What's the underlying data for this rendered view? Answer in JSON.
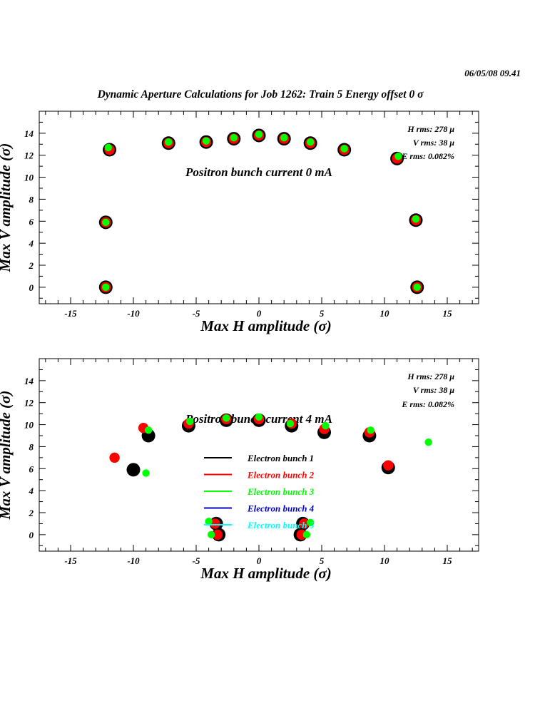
{
  "header": {
    "datetime": "06/05/08   09.41",
    "title": "Dynamic Aperture Calculations for Job 1262:  Train 5   Energy offset  0 σ"
  },
  "colors": {
    "bunch1": "#000000",
    "bunch2": "#ff0000",
    "bunch3": "#00ff00",
    "bunch4": "#0000c0",
    "bunch5": "#00ffff"
  },
  "chart_data": [
    {
      "type": "scatter",
      "xlabel": "Max H amplitude (σ)",
      "ylabel": "Max V amplitude (σ)",
      "xlim": [
        -17.5,
        17.5
      ],
      "ylim": [
        -1.5,
        16
      ],
      "x_ticks": [
        -15,
        -10,
        -5,
        0,
        5,
        10,
        15
      ],
      "y_ticks": [
        0,
        2,
        4,
        6,
        8,
        10,
        12,
        14
      ],
      "annotation": "Positron bunch current  0 mA",
      "stats": [
        "H rms: 278 μ",
        "V rms: 38 μ",
        "E rms: 0.082%"
      ],
      "series": [
        {
          "color": "#000000",
          "points": [
            [
              -12.2,
              0
            ],
            [
              -12.2,
              5.9
            ],
            [
              -11.9,
              12.5
            ],
            [
              -7.2,
              13.1
            ],
            [
              -4.2,
              13.2
            ],
            [
              -2,
              13.5
            ],
            [
              0,
              13.8
            ],
            [
              2,
              13.5
            ],
            [
              4.1,
              13.1
            ],
            [
              6.8,
              12.5
            ],
            [
              11,
              11.7
            ],
            [
              12.5,
              6.1
            ],
            [
              12.6,
              0
            ]
          ]
        },
        {
          "color": "#ff0000",
          "points": [
            [
              -12.2,
              0
            ],
            [
              -12.2,
              5.9
            ],
            [
              -11.9,
              12.5
            ],
            [
              -7.2,
              13.1
            ],
            [
              -4.2,
              13.2
            ],
            [
              -2,
              13.5
            ],
            [
              0,
              13.8
            ],
            [
              2,
              13.5
            ],
            [
              4.1,
              13.1
            ],
            [
              6.8,
              12.5
            ],
            [
              11,
              11.7
            ],
            [
              12.5,
              6.1
            ],
            [
              12.6,
              0
            ]
          ]
        },
        {
          "color": "#00ff00",
          "points": [
            [
              -12.2,
              0
            ],
            [
              -12.2,
              5.9
            ],
            [
              -12,
              12.7
            ],
            [
              -7.2,
              13.2
            ],
            [
              -4.2,
              13.3
            ],
            [
              -2,
              13.6
            ],
            [
              0,
              13.9
            ],
            [
              2,
              13.6
            ],
            [
              4.1,
              13.2
            ],
            [
              6.8,
              12.6
            ],
            [
              11.1,
              11.9
            ],
            [
              12.5,
              6.2
            ],
            [
              12.6,
              0
            ]
          ]
        }
      ]
    },
    {
      "type": "scatter",
      "xlabel": "Max H amplitude (σ)",
      "ylabel": "Max V amplitude (σ)",
      "xlim": [
        -17.5,
        17.5
      ],
      "ylim": [
        -1.5,
        16
      ],
      "x_ticks": [
        -15,
        -10,
        -5,
        0,
        5,
        10,
        15
      ],
      "y_ticks": [
        0,
        2,
        4,
        6,
        8,
        10,
        12,
        14
      ],
      "annotation": "Positron bunch current  4 mA",
      "stats": [
        "H rms: 278 μ",
        "V rms: 38 μ",
        "E rms: 0.082%"
      ],
      "legend": [
        "Electron bunch 1",
        "Electron bunch 2",
        "Electron bunch 3",
        "Electron bunch 4",
        "Electron bunch 5"
      ],
      "legend_colors": [
        "#000000",
        "#ff0000",
        "#00ff00",
        "#0000c0",
        "#00ffff"
      ],
      "series": [
        {
          "color": "#000000",
          "points": [
            [
              -10,
              5.9
            ],
            [
              -8.8,
              9
            ],
            [
              -5.6,
              9.9
            ],
            [
              -2.6,
              10.4
            ],
            [
              0,
              10.4
            ],
            [
              2.6,
              9.9
            ],
            [
              5.2,
              9.3
            ],
            [
              8.8,
              9
            ],
            [
              10.3,
              6.1
            ],
            [
              -3.4,
              1
            ],
            [
              -3.2,
              0
            ],
            [
              3.5,
              1
            ],
            [
              3.3,
              0
            ]
          ]
        },
        {
          "color": "#ff0000",
          "points": [
            [
              -11.5,
              7
            ],
            [
              -9.2,
              9.7
            ],
            [
              -5.6,
              10.1
            ],
            [
              -2.6,
              10.5
            ],
            [
              0,
              10.5
            ],
            [
              2.6,
              10.1
            ],
            [
              5.2,
              9.6
            ],
            [
              8.8,
              9.3
            ],
            [
              10.3,
              6.3
            ],
            [
              -3.5,
              1
            ],
            [
              -3.3,
              0
            ],
            [
              3.6,
              1
            ],
            [
              3.4,
              0
            ]
          ]
        },
        {
          "color": "#00ff00",
          "points": [
            [
              -9,
              5.6
            ],
            [
              -8.8,
              9.5
            ],
            [
              -5.5,
              10.3
            ],
            [
              -2.6,
              10.6
            ],
            [
              0,
              10.7
            ],
            [
              2.5,
              10.1
            ],
            [
              5.3,
              9.9
            ],
            [
              8.9,
              9.5
            ],
            [
              13.5,
              8.4
            ],
            [
              -4,
              1.2
            ],
            [
              -3.8,
              0
            ],
            [
              4.1,
              1.1
            ],
            [
              3.8,
              0
            ]
          ]
        }
      ]
    }
  ]
}
